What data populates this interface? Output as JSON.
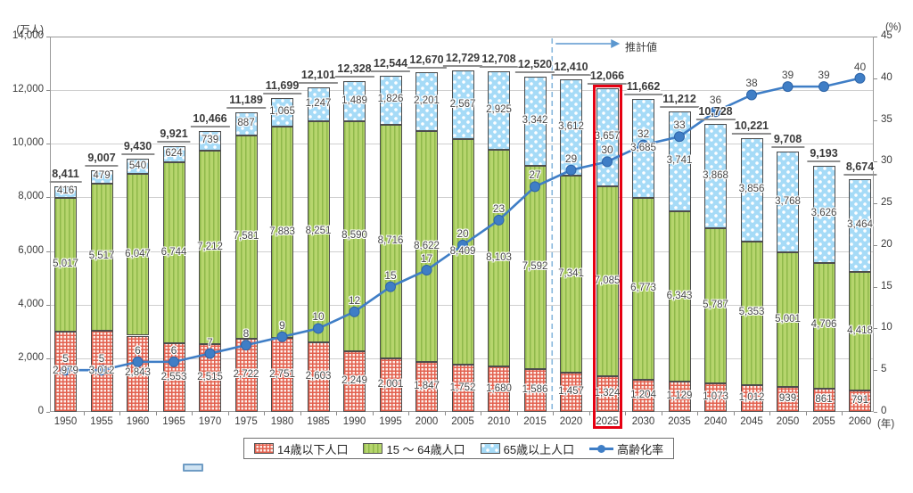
{
  "chart_data": {
    "type": "bar",
    "subtype": "stacked-bars-with-line",
    "title": "",
    "unit_left": "(万人)",
    "unit_right": "(%)",
    "unit_x": "(年)",
    "estimate_label": "推計値",
    "categories": [
      1950,
      1955,
      1960,
      1965,
      1970,
      1975,
      1980,
      1985,
      1990,
      1995,
      2000,
      2005,
      2010,
      2015,
      2020,
      2025,
      2030,
      2035,
      2040,
      2045,
      2050,
      2055,
      2060
    ],
    "series": [
      {
        "name": "14歳以下人口",
        "values": [
          2979,
          3012,
          2843,
          2553,
          2515,
          2722,
          2751,
          2603,
          2249,
          2001,
          1847,
          1752,
          1680,
          1586,
          1457,
          1324,
          1204,
          1129,
          1073,
          1012,
          939,
          861,
          791
        ]
      },
      {
        "name": "15 ～ 64歳人口",
        "values": [
          5017,
          5517,
          6047,
          6744,
          7212,
          7581,
          7883,
          8251,
          8590,
          8716,
          8622,
          8409,
          8103,
          7592,
          7341,
          7085,
          6773,
          6343,
          5787,
          5353,
          5001,
          4706,
          4418
        ]
      },
      {
        "name": "65歳以上人口",
        "values": [
          416,
          479,
          540,
          624,
          739,
          887,
          1065,
          1247,
          1489,
          1826,
          2201,
          2567,
          2925,
          3342,
          3612,
          3657,
          3685,
          3741,
          3868,
          3856,
          3768,
          3626,
          3464
        ]
      }
    ],
    "totals": [
      8411,
      9007,
      9430,
      9921,
      10466,
      11189,
      11699,
      12101,
      12328,
      12544,
      12670,
      12729,
      12708,
      12520,
      12410,
      12066,
      11662,
      11212,
      10728,
      10221,
      9708,
      9193,
      8674
    ],
    "line_series": {
      "name": "高齢化率",
      "values": [
        5,
        5,
        6,
        6,
        7,
        8,
        9,
        10,
        12,
        15,
        17,
        20,
        23,
        27,
        29,
        30,
        32,
        33,
        36,
        38,
        39,
        39,
        40
      ]
    },
    "ylim_left": [
      0,
      14000
    ],
    "ylim_right": [
      0,
      45
    ],
    "left_ticks": [
      0,
      2000,
      4000,
      6000,
      8000,
      10000,
      12000,
      14000
    ],
    "right_ticks": [
      0,
      5,
      10,
      15,
      20,
      25,
      30,
      35,
      40,
      45
    ],
    "estimate_boundary_after": 2015,
    "highlight_year": 2025,
    "grid": "horizontal",
    "legend_position": "bottom",
    "colors": {
      "under14_pattern": "#e2604e",
      "working_fill": "#b6d56d",
      "working_stripe": "#8fb94a",
      "senior_fill": "#a6dbf7",
      "rate_line": "#3f7ec6",
      "highlight_box": "#e60012",
      "gridline": "#cfcfcf"
    }
  },
  "legend": {
    "items": [
      {
        "label": "14歳以下人口"
      },
      {
        "label": "15 ～ 64歳人口"
      },
      {
        "label": "65歳以上人口"
      },
      {
        "label": "高齢化率"
      }
    ]
  }
}
